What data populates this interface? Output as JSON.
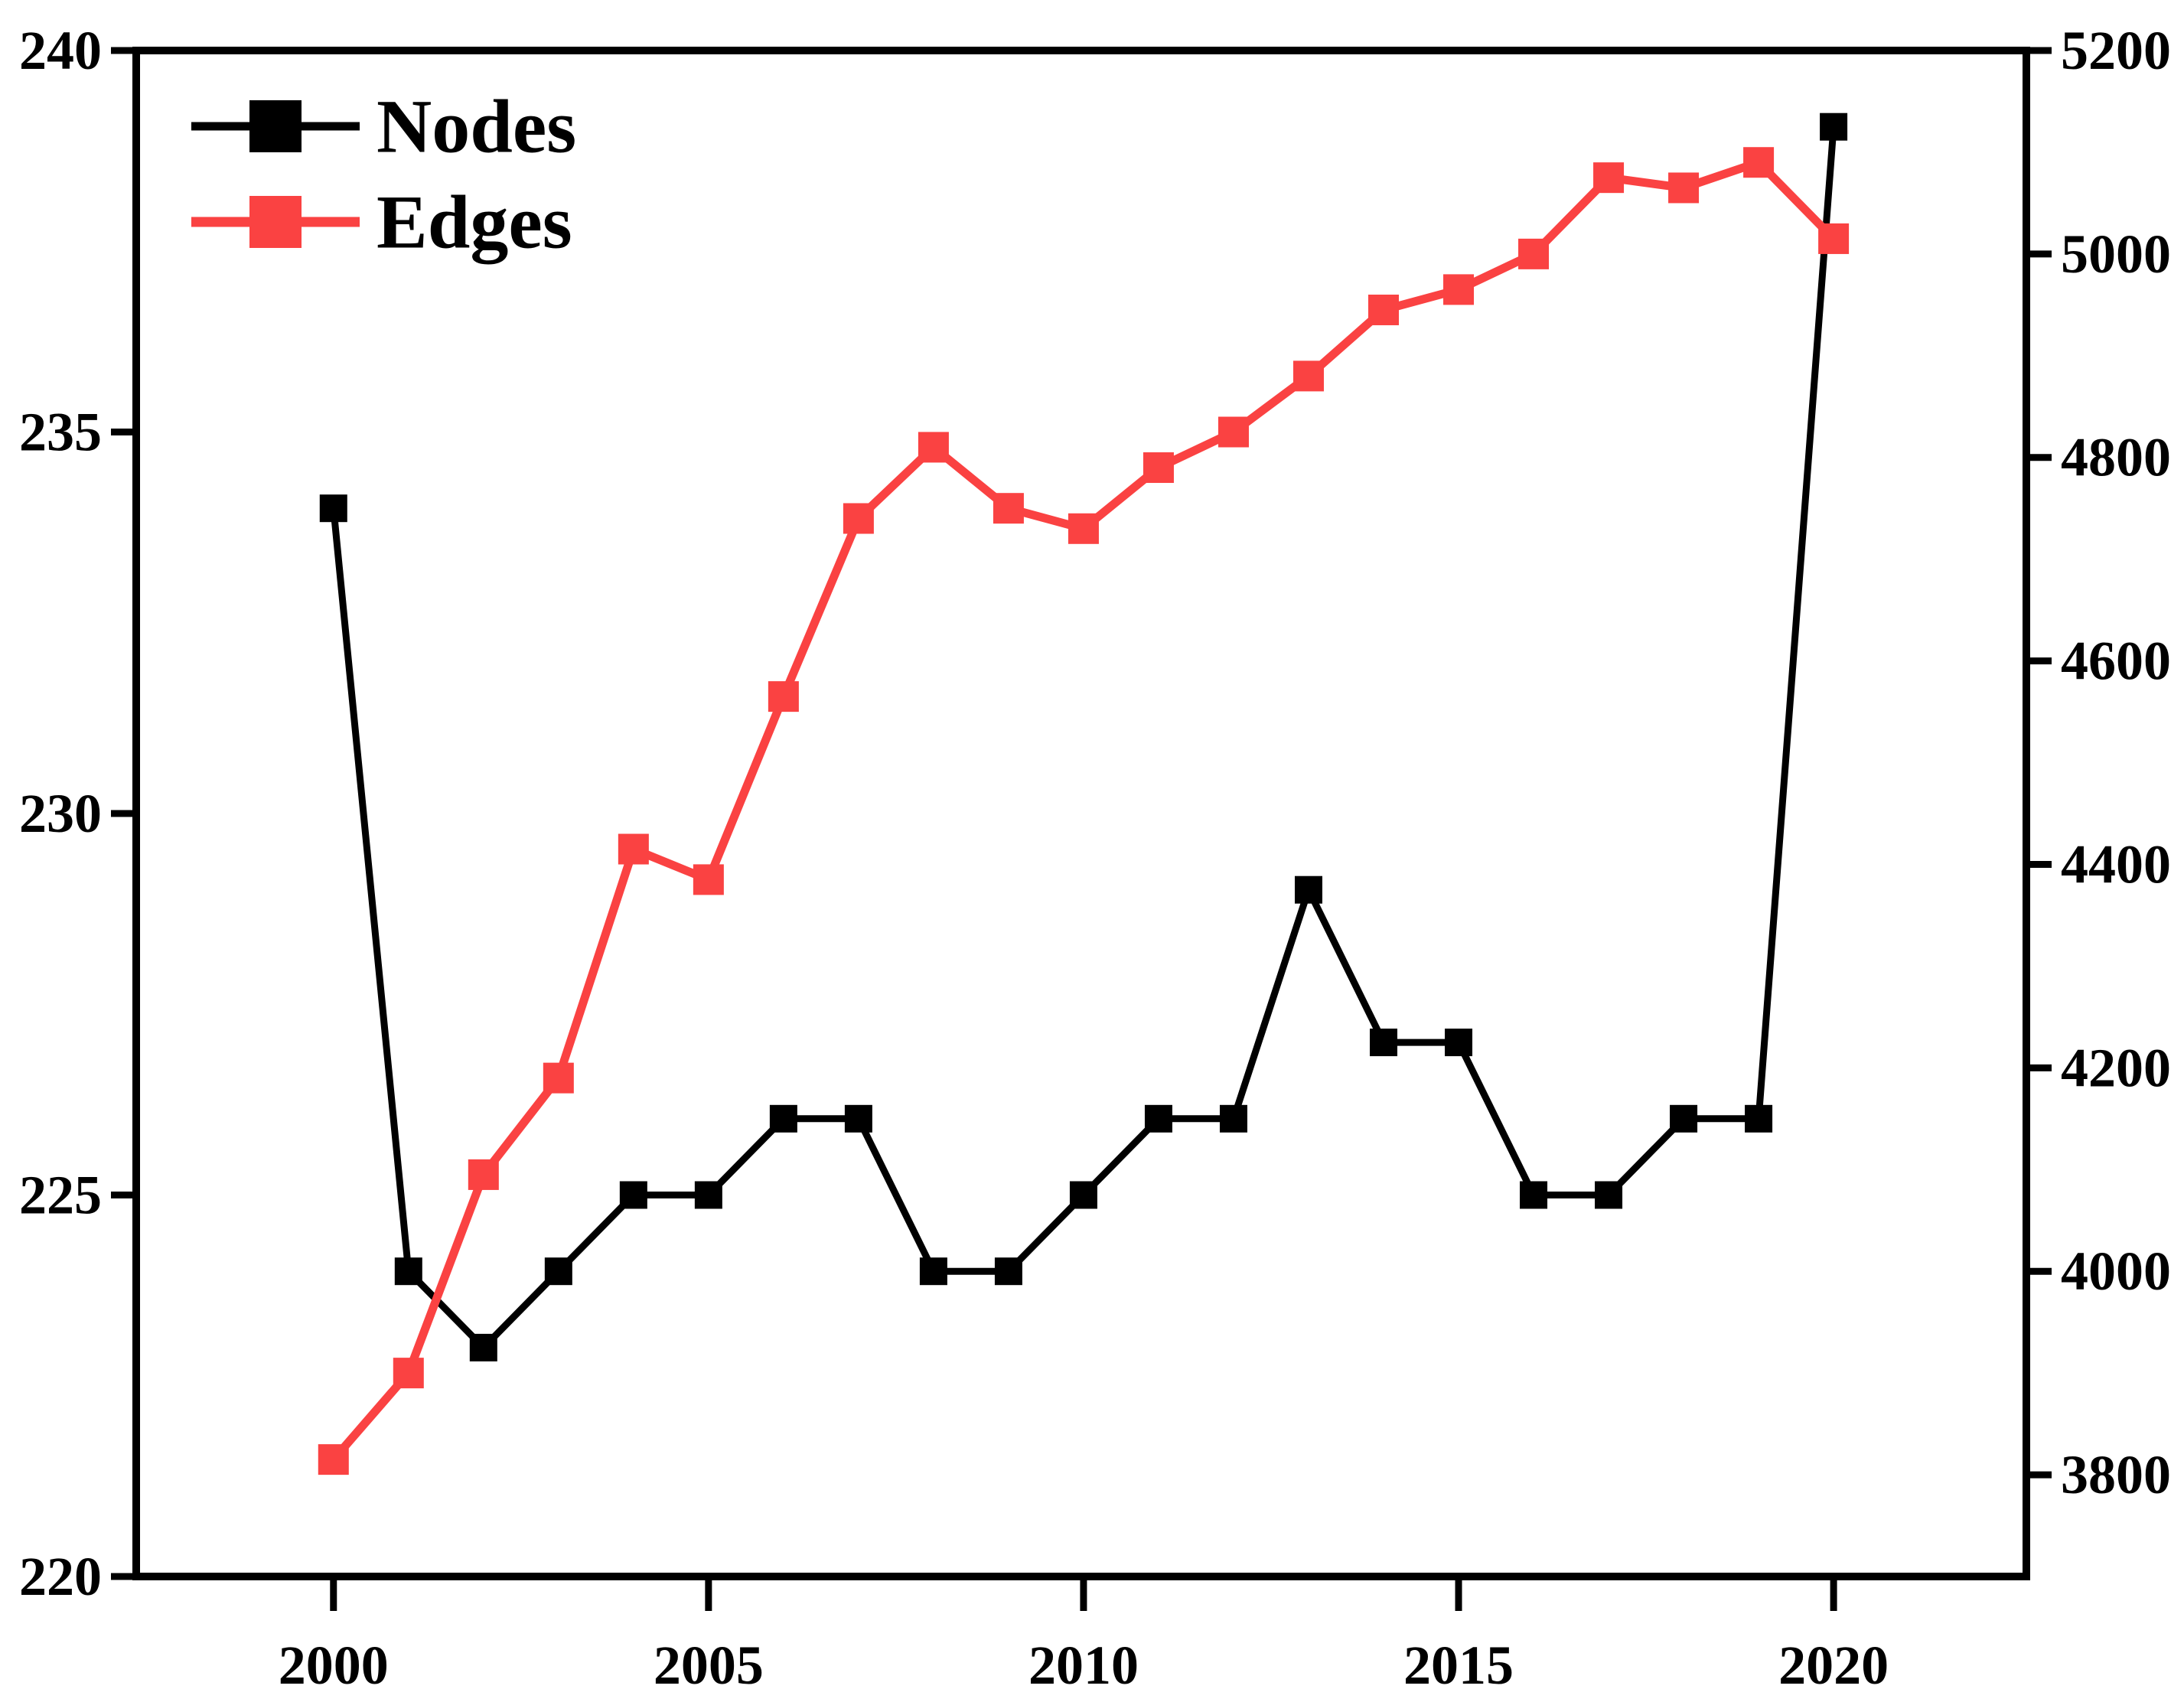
{
  "chart_data": {
    "type": "line",
    "title": "",
    "xlabel": "",
    "ylabel_left": "",
    "ylabel_right": "",
    "grid": false,
    "frame": true,
    "background": "#ffffff",
    "x": [
      2000,
      2001,
      2002,
      2003,
      2004,
      2005,
      2006,
      2007,
      2008,
      2009,
      2010,
      2011,
      2012,
      2013,
      2014,
      2015,
      2016,
      2017,
      2018,
      2019,
      2020
    ],
    "series": [
      {
        "name": "Nodes",
        "axis": "left",
        "color": "#000000",
        "marker": "square",
        "values": [
          234,
          224,
          223,
          224,
          225,
          225,
          226,
          226,
          224,
          224,
          225,
          226,
          226,
          229,
          227,
          227,
          225,
          225,
          226,
          226,
          239
        ]
      },
      {
        "name": "Edges",
        "axis": "right",
        "color": "#fa4242",
        "marker": "square",
        "values": [
          3815,
          3900,
          4095,
          4190,
          4415,
          4385,
          4565,
          4740,
          4810,
          4750,
          4730,
          4790,
          4825,
          4880,
          4945,
          4965,
          5000,
          5075,
          5065,
          5090,
          5015
        ]
      }
    ],
    "x_axis": {
      "ticks": [
        2000,
        2005,
        2010,
        2015,
        2020
      ],
      "lim": [
        1997.37,
        2022.57
      ]
    },
    "y_left_axis": {
      "ticks": [
        220,
        225,
        230,
        235,
        240
      ],
      "lim": [
        220,
        240
      ]
    },
    "y_right_axis": {
      "ticks": [
        3800,
        4000,
        4200,
        4400,
        4600,
        4800,
        5000,
        5200
      ],
      "lim": [
        3700,
        5200
      ]
    },
    "legend": {
      "position": "top-left",
      "entries": [
        "Nodes",
        "Edges"
      ]
    }
  },
  "colors": {
    "nodes_series": "#000000",
    "edges_series": "#fa4242",
    "axis_and_text": "#000000",
    "background": "#ffffff"
  }
}
